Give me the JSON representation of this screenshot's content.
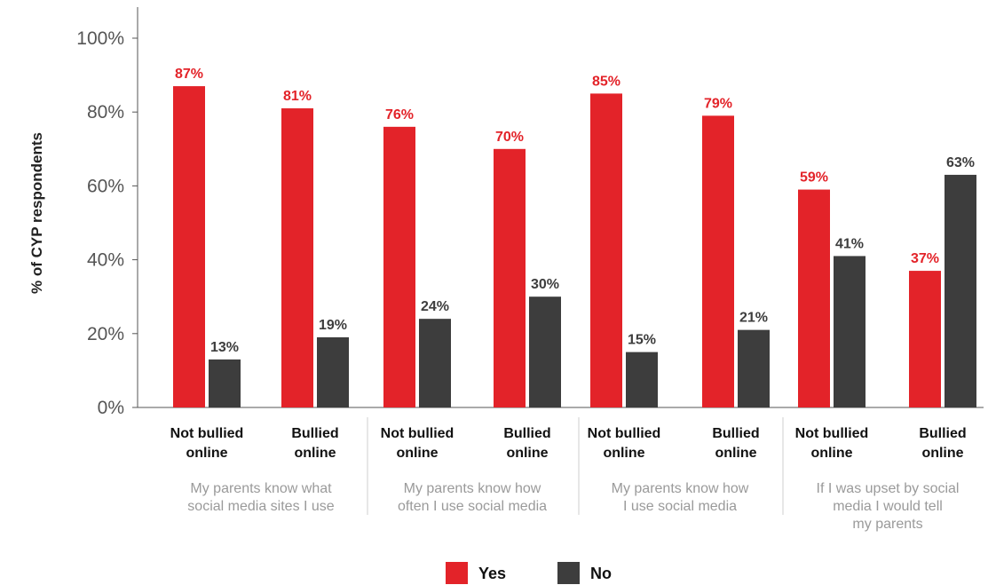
{
  "chart_data": {
    "type": "bar",
    "ylabel": "% of CYP respondents",
    "ylim": [
      0,
      100
    ],
    "yticks": [
      0,
      20,
      40,
      60,
      80,
      100
    ],
    "ytick_labels": [
      "0%",
      "20%",
      "40%",
      "60%",
      "80%",
      "100%"
    ],
    "grid": false,
    "legend_position": "bottom",
    "categories": [
      [
        "Not bullied",
        "online"
      ],
      [
        "Bullied",
        "online"
      ],
      [
        "Not bullied",
        "online"
      ],
      [
        "Bullied",
        "online"
      ],
      [
        "Not bullied",
        "online"
      ],
      [
        "Bullied",
        "online"
      ],
      [
        "Not bullied",
        "online"
      ],
      [
        "Bullied",
        "online"
      ]
    ],
    "groups": [
      [
        "My parents know what",
        "social media sites I use"
      ],
      [
        "My parents know how",
        "often I use social media"
      ],
      [
        "My parents know how",
        "I use social media"
      ],
      [
        "If I was upset by social",
        "media I would tell",
        "my parents"
      ]
    ],
    "series": [
      {
        "name": "Yes",
        "color": "#e32329",
        "values": [
          87,
          81,
          76,
          70,
          85,
          79,
          59,
          37
        ],
        "labels": [
          "87%",
          "81%",
          "76%",
          "70%",
          "85%",
          "79%",
          "59%",
          "37%"
        ]
      },
      {
        "name": "No",
        "color": "#3d3d3d",
        "values": [
          13,
          19,
          24,
          30,
          15,
          21,
          41,
          63
        ],
        "labels": [
          "13%",
          "19%",
          "24%",
          "30%",
          "15%",
          "21%",
          "41%",
          "63%"
        ]
      }
    ]
  }
}
